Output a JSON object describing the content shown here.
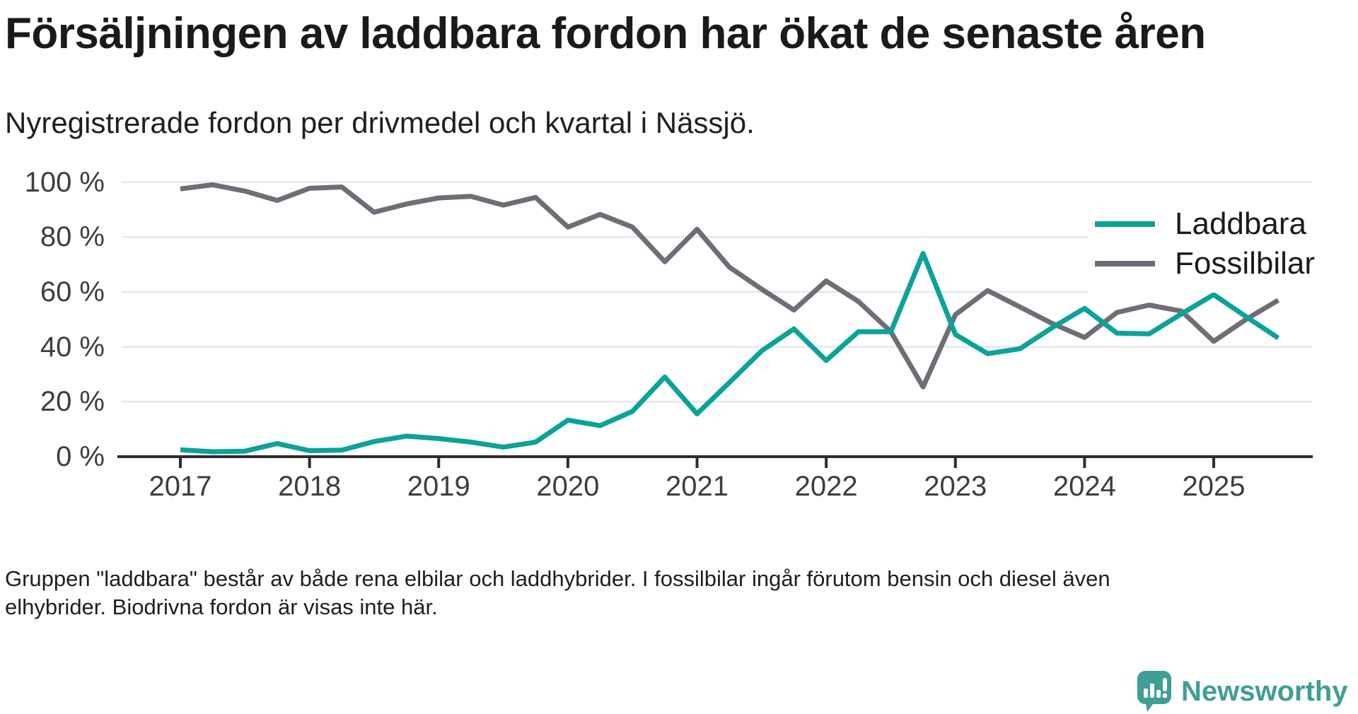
{
  "title": "Försäljningen av laddbara fordon har ökat de senaste åren",
  "subtitle": "Nyregistrerade fordon per drivmedel och kvartal i Nässjö.",
  "footnote": {
    "line1": "Gruppen \"laddbara\" består av både rena elbilar och laddhybrider. I fossilbilar ingår förutom bensin och diesel även",
    "line2": "elhybrider. Biodrivna fordon är visas inte här."
  },
  "branding": {
    "name": "Newsworthy",
    "logo_icon": "speech-bubble-bar-chart",
    "color": "#3f9e95"
  },
  "colors": {
    "laddbara": "#0ba29a",
    "fossilbilar": "#6f6d75",
    "gridline": "#e3e3e3",
    "axis": "#2d2d2d",
    "tick_label": "#3d3d3d"
  },
  "chart_data": {
    "type": "line",
    "title": "Försäljningen av laddbara fordon har ökat de senaste åren",
    "subtitle": "Nyregistrerade fordon per drivmedel och kvartal i Nässjö.",
    "xlabel": "",
    "ylabel": "",
    "ylim": [
      0,
      100
    ],
    "grid": "horizontal",
    "legend_position": "inside-top-right",
    "x": [
      "2017 Q1",
      "2017 Q2",
      "2017 Q3",
      "2017 Q4",
      "2018 Q1",
      "2018 Q2",
      "2018 Q3",
      "2018 Q4",
      "2019 Q1",
      "2019 Q2",
      "2019 Q3",
      "2019 Q4",
      "2020 Q1",
      "2020 Q2",
      "2020 Q3",
      "2020 Q4",
      "2021 Q1",
      "2021 Q2",
      "2021 Q3",
      "2021 Q4",
      "2022 Q1",
      "2022 Q2",
      "2022 Q3",
      "2022 Q4",
      "2023 Q1",
      "2023 Q2",
      "2023 Q3",
      "2023 Q4",
      "2024 Q1",
      "2024 Q2",
      "2024 Q3",
      "2024 Q4",
      "2025 Q1",
      "2025 Q2",
      "2025 Q3"
    ],
    "x_tick_labels": [
      "2017",
      "2018",
      "2019",
      "2020",
      "2021",
      "2022",
      "2023",
      "2024",
      "2025"
    ],
    "y_tick_labels": [
      "0 %",
      "20 %",
      "40 %",
      "60 %",
      "80 %",
      "100 %"
    ],
    "y_tick_values": [
      0,
      20,
      40,
      60,
      80,
      100
    ],
    "series": [
      {
        "name": "Laddbara",
        "color": "#0ba29a",
        "values": [
          2.5,
          1.8,
          2.0,
          4.8,
          2.2,
          2.4,
          5.5,
          7.5,
          6.6,
          5.3,
          3.5,
          5.3,
          13.3,
          11.3,
          16.5,
          29,
          15.6,
          27,
          38.5,
          46.5,
          35,
          45.5,
          45.5,
          74,
          44.5,
          37.5,
          39.3,
          47,
          54,
          45,
          44.7,
          52,
          59,
          51,
          43.2
        ]
      },
      {
        "name": "Fossilbilar",
        "color": "#6f6d75",
        "values": [
          97.5,
          99,
          96.7,
          93.3,
          97.7,
          98.2,
          89,
          92,
          94.2,
          94.8,
          91.6,
          94.4,
          83.6,
          88.2,
          83.6,
          71,
          82.8,
          69,
          61,
          53.4,
          64,
          56.5,
          45.5,
          25.4,
          51.7,
          60.5,
          54.5,
          48.5,
          43.4,
          52.5,
          55.2,
          53,
          42,
          50,
          57
        ]
      }
    ]
  }
}
